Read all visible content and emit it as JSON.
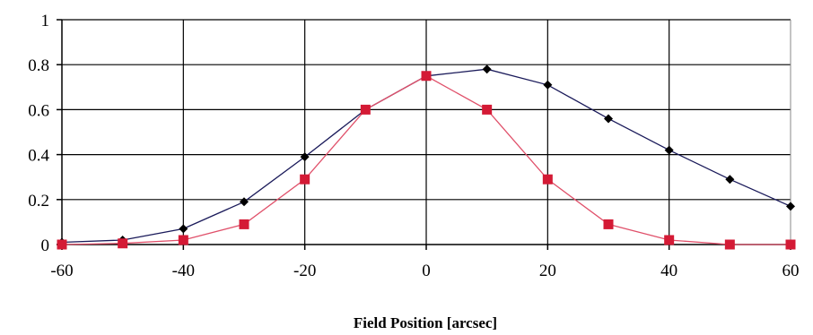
{
  "chart_data": {
    "type": "line",
    "title": "",
    "xlabel": "Field Position [arcsec]",
    "ylabel": "",
    "xlim": [
      -60,
      60
    ],
    "ylim": [
      0,
      1
    ],
    "x_ticks": [
      -60,
      -40,
      -20,
      0,
      20,
      40,
      60
    ],
    "x_tick_labels": [
      "-60",
      "-40",
      "-20",
      "0",
      "20",
      "40",
      "60"
    ],
    "y_ticks": [
      0,
      0.2,
      0.4,
      0.6,
      0.8,
      1
    ],
    "y_tick_labels": [
      "0",
      "0.2",
      "0.4",
      "0.6",
      "0.8",
      "1"
    ],
    "grid": true,
    "legend": "none",
    "series": [
      {
        "marker": "diamond",
        "color": "#1a1a5a",
        "marker_color": "#000000",
        "points": [
          {
            "x": -60,
            "y": 0.01
          },
          {
            "x": -50,
            "y": 0.02
          },
          {
            "x": -40,
            "y": 0.07
          },
          {
            "x": -30,
            "y": 0.19
          },
          {
            "x": -20,
            "y": 0.39
          },
          {
            "x": -10,
            "y": 0.6
          },
          {
            "x": 0,
            "y": 0.75
          },
          {
            "x": 10,
            "y": 0.78
          },
          {
            "x": 20,
            "y": 0.71
          },
          {
            "x": 30,
            "y": 0.56
          },
          {
            "x": 40,
            "y": 0.42
          },
          {
            "x": 50,
            "y": 0.29
          },
          {
            "x": 60,
            "y": 0.17
          }
        ]
      },
      {
        "marker": "square",
        "color": "#e0506a",
        "marker_color": "#d41a35",
        "points": [
          {
            "x": -60,
            "y": 0.0
          },
          {
            "x": -50,
            "y": 0.005
          },
          {
            "x": -40,
            "y": 0.02
          },
          {
            "x": -30,
            "y": 0.09
          },
          {
            "x": -20,
            "y": 0.29
          },
          {
            "x": -10,
            "y": 0.6
          },
          {
            "x": 0,
            "y": 0.75
          },
          {
            "x": 10,
            "y": 0.6
          },
          {
            "x": 20,
            "y": 0.29
          },
          {
            "x": 30,
            "y": 0.09
          },
          {
            "x": 40,
            "y": 0.02
          },
          {
            "x": 50,
            "y": 0.0
          },
          {
            "x": 60,
            "y": 0.0
          }
        ]
      }
    ]
  }
}
